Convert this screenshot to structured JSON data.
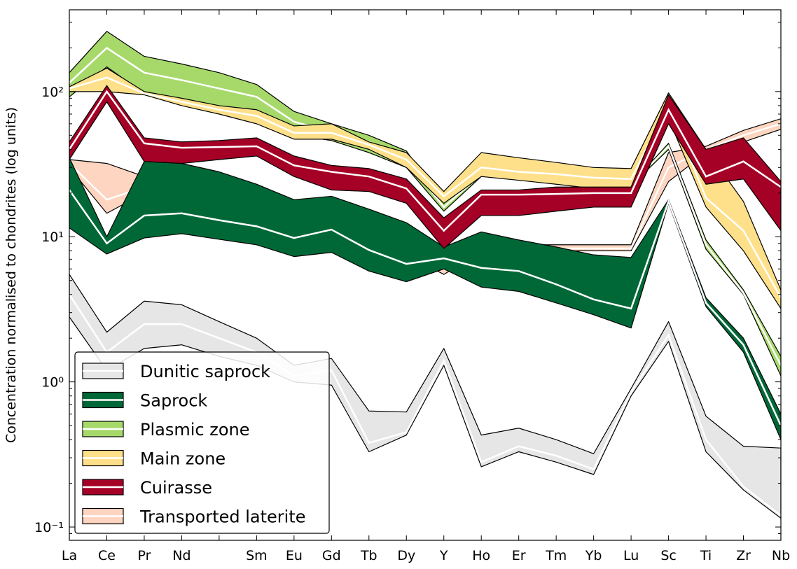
{
  "chart_data": {
    "type": "band",
    "ylabel": "Concentration normalised to chondrites (log units)",
    "categories": [
      "La",
      "Ce",
      "Pr",
      "Nd",
      null,
      "Sm",
      "Eu",
      "Gd",
      "Tb",
      "Dy",
      "Y",
      "Ho",
      "Er",
      "Tm",
      "Yb",
      "Lu",
      "Sc",
      "Ti",
      "Zr",
      "Nb"
    ],
    "log_scale": true,
    "ylim": [
      0.081,
      366
    ],
    "yticks": [
      {
        "value": 0.1,
        "label": "10⁻¹"
      },
      {
        "value": 1,
        "label": "10⁰"
      },
      {
        "value": 10,
        "label": "10¹"
      },
      {
        "value": 100,
        "label": "10²"
      }
    ],
    "yminorticks": [
      0.09,
      0.2,
      0.3,
      0.4,
      0.5,
      0.6,
      0.7,
      0.8,
      0.9,
      2,
      3,
      4,
      5,
      6,
      7,
      8,
      9,
      20,
      30,
      40,
      50,
      60,
      70,
      80,
      90,
      200,
      300
    ],
    "legend": "lower left",
    "series": [
      {
        "name": "Transported laterite",
        "color": "#fdd5c0",
        "lower": [
          30,
          14.5,
          20,
          18,
          15,
          12,
          10,
          10,
          9.5,
          7.5,
          5.5,
          7.8,
          8,
          8,
          8,
          8,
          24,
          38,
          45,
          55
        ],
        "median": [
          32,
          18,
          22,
          20,
          16.5,
          13.5,
          11.5,
          11,
          10,
          8.5,
          6,
          8.3,
          8.3,
          8.3,
          8.3,
          8.3,
          30,
          40,
          50,
          60
        ],
        "upper": [
          34,
          32,
          26,
          22,
          18,
          15,
          13,
          12,
          11,
          9.5,
          6.5,
          8.8,
          8.8,
          8.8,
          8.8,
          8.8,
          38,
          42,
          54,
          65
        ]
      },
      {
        "name": "Dunitic saprock",
        "color": "#e6e6e6",
        "lower": [
          2.8,
          1.2,
          1.7,
          1.8,
          1.5,
          1.3,
          1.0,
          0.95,
          0.33,
          0.43,
          1.3,
          0.26,
          0.33,
          0.28,
          0.23,
          0.8,
          1.9,
          0.33,
          0.18,
          0.115
        ],
        "median": [
          4.0,
          1.6,
          2.5,
          2.5,
          2.0,
          1.6,
          1.1,
          1.2,
          0.38,
          0.45,
          1.4,
          0.28,
          0.36,
          0.31,
          0.25,
          0.85,
          2.1,
          0.4,
          0.19,
          0.12
        ],
        "upper": [
          5.5,
          2.2,
          3.6,
          3.4,
          2.6,
          2.0,
          1.3,
          1.45,
          0.63,
          0.62,
          1.7,
          0.43,
          0.48,
          0.4,
          0.32,
          0.9,
          2.6,
          0.58,
          0.36,
          0.35
        ]
      },
      {
        "name": "Saprock",
        "color": "#006837",
        "lower": [
          11.5,
          7.6,
          9.8,
          10.5,
          9.6,
          8.8,
          7.3,
          7.8,
          5.8,
          4.9,
          6.0,
          4.5,
          4.2,
          3.5,
          2.9,
          2.35,
          17,
          3.3,
          1.6,
          0.4
        ],
        "median": [
          21,
          9,
          14,
          14.5,
          13,
          11.8,
          9.8,
          11.2,
          8.1,
          6.5,
          7.1,
          6.1,
          5.8,
          4.7,
          3.7,
          3.2,
          17.5,
          3.5,
          1.8,
          0.5
        ],
        "upper": [
          35,
          10,
          33,
          32,
          28,
          23,
          18,
          19,
          15.5,
          12.5,
          8.5,
          10.8,
          9.5,
          8.5,
          7.5,
          7.2,
          18,
          3.8,
          2.0,
          0.6
        ]
      },
      {
        "name": "Plasmic zone",
        "color": "#a6d96a",
        "lower": [
          92,
          148,
          97,
          85,
          75,
          70,
          50,
          46,
          38,
          30,
          15,
          26,
          25,
          24,
          23,
          22.5,
          40,
          8.2,
          4.0,
          1.1
        ],
        "median": [
          115,
          200,
          135,
          120,
          105,
          92,
          62,
          53,
          45,
          34,
          16,
          27,
          26,
          25,
          24,
          23,
          42,
          8.8,
          4.1,
          1.3
        ],
        "upper": [
          135,
          260,
          175,
          155,
          135,
          112,
          73,
          60,
          50,
          39,
          17,
          29,
          27,
          26,
          25,
          23,
          44,
          9.5,
          4.3,
          1.5
        ]
      },
      {
        "name": "Main zone",
        "color": "#fee08b",
        "lower": [
          100,
          100,
          95,
          80,
          70,
          60,
          47,
          47,
          40,
          30,
          17,
          26,
          24.5,
          23,
          21.5,
          20.5,
          65,
          16,
          8,
          3.2
        ],
        "median": [
          105,
          125,
          97,
          85,
          75,
          68,
          52,
          52,
          43,
          34,
          19,
          30,
          28,
          27,
          25.5,
          25,
          80,
          18.5,
          11,
          3.8
        ],
        "upper": [
          108,
          145,
          100,
          90,
          80,
          75,
          58,
          60,
          45,
          38,
          20.5,
          38,
          35,
          32.5,
          30,
          29.5,
          98,
          40,
          17.5,
          4.3
        ]
      },
      {
        "name": "Cuirasse",
        "color": "#a50026",
        "lower": [
          34,
          85,
          33,
          32,
          34,
          36,
          26,
          21,
          20.5,
          17,
          8.3,
          14,
          14,
          15,
          16,
          16,
          60,
          23,
          25,
          11
        ],
        "median": [
          40,
          100,
          44,
          41,
          41.5,
          42,
          31,
          28,
          26,
          21.5,
          11,
          19.5,
          19.5,
          19.7,
          20,
          20,
          75,
          26,
          33,
          22
        ],
        "upper": [
          45,
          110,
          48,
          45,
          46,
          48,
          36,
          31,
          29.5,
          25,
          13.5,
          21,
          21,
          22,
          22,
          22,
          95,
          40,
          48,
          24
        ]
      }
    ],
    "legend_order": [
      1,
      2,
      3,
      4,
      5,
      0
    ]
  }
}
